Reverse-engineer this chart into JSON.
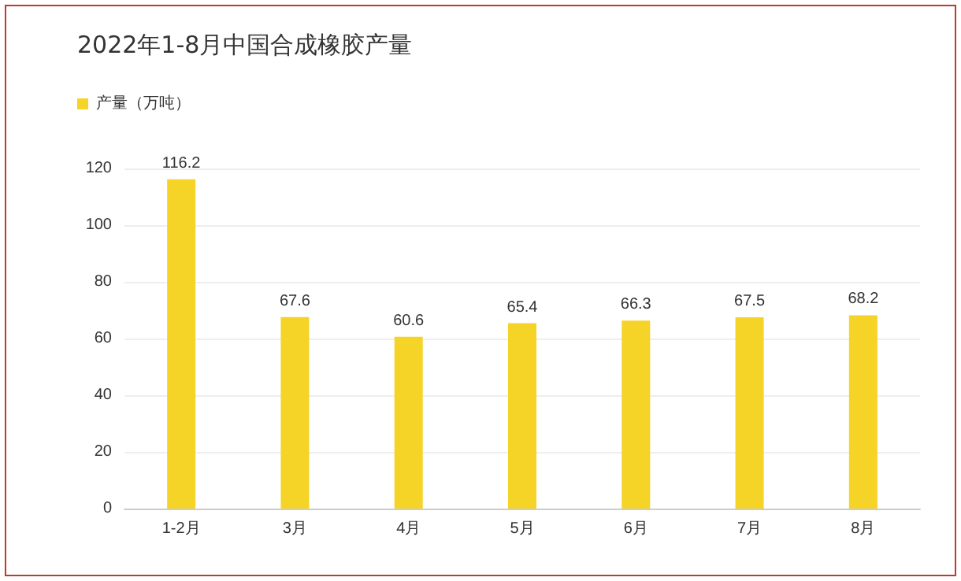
{
  "chart_data": {
    "type": "bar",
    "title": "2022年1-8月中国合成橡胶产量",
    "categories": [
      "1-2月",
      "3月",
      "4月",
      "5月",
      "6月",
      "7月",
      "8月"
    ],
    "series": [
      {
        "name": "产量（万吨）",
        "color": "#f5d327",
        "values": [
          116.2,
          67.6,
          60.6,
          65.4,
          66.3,
          67.5,
          68.2
        ]
      }
    ],
    "ylim": [
      0,
      120
    ],
    "yticks": [
      0,
      20,
      40,
      60,
      80,
      100,
      120
    ],
    "grid": "y",
    "legend": "top left",
    "data_labels": true
  }
}
